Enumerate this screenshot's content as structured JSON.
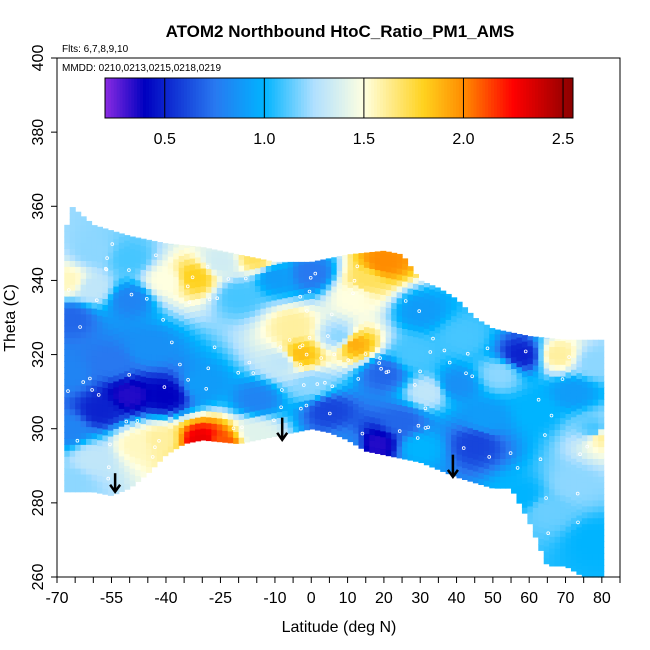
{
  "chart_data": {
    "type": "heatmap",
    "title": "ATOM2 Northbound HtoC_Ratio_PM1_AMS",
    "annotations": [
      "Flts: 6,7,8,9,10",
      "MMDD: 0210,0213,0215,0218,0219"
    ],
    "xlabel": "Latitude (deg N)",
    "ylabel": "Theta (C)",
    "xlim": [
      -70,
      85
    ],
    "ylim": [
      260,
      400
    ],
    "x_ticks_minor": [
      -70,
      -65,
      -60,
      -55,
      -50,
      -45,
      -40,
      -35,
      -30,
      -25,
      -20,
      -15,
      -10,
      -5,
      0,
      5,
      10,
      15,
      20,
      25,
      30,
      35,
      40,
      45,
      50,
      55,
      60,
      65,
      70,
      75,
      80,
      85
    ],
    "x_tick_labels": [
      {
        "value": -70,
        "label": "-70"
      },
      {
        "value": -55,
        "label": "-55"
      },
      {
        "value": -40,
        "label": "-40"
      },
      {
        "value": -25,
        "label": "-25"
      },
      {
        "value": -10,
        "label": "-10"
      },
      {
        "value": 0,
        "label": "0"
      },
      {
        "value": 10,
        "label": "10"
      },
      {
        "value": 20,
        "label": "20"
      },
      {
        "value": 30,
        "label": "30"
      },
      {
        "value": 40,
        "label": "40"
      },
      {
        "value": 50,
        "label": "50"
      },
      {
        "value": 60,
        "label": "60"
      },
      {
        "value": 70,
        "label": "70"
      },
      {
        "value": 80,
        "label": "80"
      }
    ],
    "y_ticks": [
      260,
      280,
      300,
      320,
      340,
      360,
      380,
      400
    ],
    "grid": false,
    "colorbar": {
      "range": [
        0.2,
        2.55
      ],
      "tick_values": [
        0.5,
        1.0,
        1.5,
        2.0,
        2.5
      ],
      "tick_labels": [
        "0.5",
        "1.0",
        "1.5",
        "2.0",
        "2.5"
      ],
      "stops": [
        {
          "v": 0.2,
          "color": "#8a2be2"
        },
        {
          "v": 0.4,
          "color": "#0000c0"
        },
        {
          "v": 0.75,
          "color": "#2878f0"
        },
        {
          "v": 1.0,
          "color": "#00b4ff"
        },
        {
          "v": 1.25,
          "color": "#b0e0ff"
        },
        {
          "v": 1.5,
          "color": "#ffffe0"
        },
        {
          "v": 1.8,
          "color": "#ffd21e"
        },
        {
          "v": 2.0,
          "color": "#ff8c00"
        },
        {
          "v": 2.25,
          "color": "#ff0000"
        },
        {
          "v": 2.55,
          "color": "#8b0000"
        }
      ]
    },
    "coverage": {
      "top": [
        [
          -68,
          352
        ],
        [
          -66,
          360
        ],
        [
          -60,
          355
        ],
        [
          -50,
          352
        ],
        [
          -40,
          350
        ],
        [
          -30,
          349
        ],
        [
          -20,
          347
        ],
        [
          -10,
          345
        ],
        [
          0,
          345
        ],
        [
          10,
          347
        ],
        [
          20,
          348
        ],
        [
          25,
          347
        ],
        [
          30,
          340
        ],
        [
          35,
          338
        ],
        [
          40,
          335
        ],
        [
          45,
          330
        ],
        [
          50,
          327
        ],
        [
          55,
          326
        ],
        [
          60,
          325
        ],
        [
          70,
          324
        ],
        [
          80,
          324
        ]
      ],
      "bottom": [
        [
          -68,
          283
        ],
        [
          -60,
          283
        ],
        [
          -55,
          282
        ],
        [
          -50,
          284
        ],
        [
          -45,
          288
        ],
        [
          -40,
          293
        ],
        [
          -35,
          296
        ],
        [
          -30,
          297
        ],
        [
          -20,
          296
        ],
        [
          -10,
          298
        ],
        [
          -5,
          299
        ],
        [
          0,
          300
        ],
        [
          5,
          299
        ],
        [
          10,
          297
        ],
        [
          15,
          294
        ],
        [
          20,
          293
        ],
        [
          30,
          291
        ],
        [
          40,
          287
        ],
        [
          50,
          284
        ],
        [
          55,
          284
        ],
        [
          60,
          275
        ],
        [
          65,
          263
        ],
        [
          70,
          263
        ],
        [
          75,
          260
        ],
        [
          80,
          260
        ]
      ]
    },
    "arrows": [
      {
        "lat": -54,
        "theta_top": 288,
        "theta_tip": 283
      },
      {
        "lat": -8,
        "theta_top": 303,
        "theta_tip": 297
      },
      {
        "lat": 39,
        "theta_top": 293,
        "theta_tip": 287
      }
    ],
    "field_anchors": [
      {
        "lat": -67,
        "theta": 300,
        "v": 0.8
      },
      {
        "lat": -66,
        "theta": 286,
        "v": 1.2
      },
      {
        "lat": -60,
        "theta": 292,
        "v": 1.3
      },
      {
        "lat": -58,
        "theta": 305,
        "v": 0.5
      },
      {
        "lat": -50,
        "theta": 309,
        "v": 0.35
      },
      {
        "lat": -40,
        "theta": 309,
        "v": 0.4
      },
      {
        "lat": -48,
        "theta": 296,
        "v": 1.55
      },
      {
        "lat": -42,
        "theta": 297,
        "v": 1.6
      },
      {
        "lat": -30,
        "theta": 297,
        "v": 2.3
      },
      {
        "lat": -25,
        "theta": 296,
        "v": 2.1
      },
      {
        "lat": -15,
        "theta": 299,
        "v": 1.4
      },
      {
        "lat": -67,
        "theta": 315,
        "v": 0.8
      },
      {
        "lat": -55,
        "theta": 318,
        "v": 0.75
      },
      {
        "lat": -45,
        "theta": 322,
        "v": 0.85
      },
      {
        "lat": -30,
        "theta": 312,
        "v": 0.9
      },
      {
        "lat": -15,
        "theta": 308,
        "v": 0.8
      },
      {
        "lat": -8,
        "theta": 318,
        "v": 1.3
      },
      {
        "lat": -67,
        "theta": 340,
        "v": 1.55
      },
      {
        "lat": -66,
        "theta": 330,
        "v": 0.7
      },
      {
        "lat": -60,
        "theta": 338,
        "v": 1.3
      },
      {
        "lat": -60,
        "theta": 348,
        "v": 1.2
      },
      {
        "lat": -50,
        "theta": 335,
        "v": 0.8
      },
      {
        "lat": -50,
        "theta": 346,
        "v": 1.1
      },
      {
        "lat": -40,
        "theta": 340,
        "v": 1.5
      },
      {
        "lat": -32,
        "theta": 341,
        "v": 1.8
      },
      {
        "lat": -25,
        "theta": 345,
        "v": 1.35
      },
      {
        "lat": -20,
        "theta": 336,
        "v": 1.1
      },
      {
        "lat": -15,
        "theta": 346,
        "v": 1.7
      },
      {
        "lat": -10,
        "theta": 341,
        "v": 0.9
      },
      {
        "lat": 0,
        "theta": 342,
        "v": 0.75
      },
      {
        "lat": -5,
        "theta": 328,
        "v": 1.6
      },
      {
        "lat": -3,
        "theta": 320,
        "v": 1.85
      },
      {
        "lat": 0,
        "theta": 312,
        "v": 1.2
      },
      {
        "lat": 5,
        "theta": 305,
        "v": 0.6
      },
      {
        "lat": 8,
        "theta": 325,
        "v": 1.2
      },
      {
        "lat": 12,
        "theta": 336,
        "v": 1.5
      },
      {
        "lat": 12,
        "theta": 323,
        "v": 1.9
      },
      {
        "lat": 20,
        "theta": 345,
        "v": 2.0
      },
      {
        "lat": 15,
        "theta": 340,
        "v": 1.7
      },
      {
        "lat": 20,
        "theta": 315,
        "v": 0.7
      },
      {
        "lat": 18,
        "theta": 296,
        "v": 0.35
      },
      {
        "lat": 25,
        "theta": 302,
        "v": 0.7
      },
      {
        "lat": 28,
        "theta": 320,
        "v": 1.1
      },
      {
        "lat": 30,
        "theta": 332,
        "v": 0.9
      },
      {
        "lat": 32,
        "theta": 310,
        "v": 1.3
      },
      {
        "lat": 40,
        "theta": 312,
        "v": 0.85
      },
      {
        "lat": 42,
        "theta": 325,
        "v": 1.1
      },
      {
        "lat": 45,
        "theta": 296,
        "v": 0.6
      },
      {
        "lat": 48,
        "theta": 303,
        "v": 0.9
      },
      {
        "lat": 52,
        "theta": 315,
        "v": 1.2
      },
      {
        "lat": 58,
        "theta": 320,
        "v": 0.5
      },
      {
        "lat": 62,
        "theta": 305,
        "v": 1.0
      },
      {
        "lat": 68,
        "theta": 320,
        "v": 1.6
      },
      {
        "lat": 72,
        "theta": 310,
        "v": 0.9
      },
      {
        "lat": 78,
        "theta": 300,
        "v": 1.1
      },
      {
        "lat": 80,
        "theta": 298,
        "v": 1.6
      },
      {
        "lat": 78,
        "theta": 318,
        "v": 1.2
      },
      {
        "lat": 72,
        "theta": 285,
        "v": 1.2
      },
      {
        "lat": 78,
        "theta": 270,
        "v": 1.0
      },
      {
        "lat": 65,
        "theta": 278,
        "v": 1.15
      },
      {
        "lat": 58,
        "theta": 282,
        "v": 1.0
      },
      {
        "lat": 30,
        "theta": 295,
        "v": 1.0
      },
      {
        "lat": 10,
        "theta": 296,
        "v": 0.8
      }
    ],
    "colors": {
      "axis": "#000000",
      "arrow": "#000000",
      "missing": "#ffffff",
      "sample_marker": "#ffffff"
    }
  }
}
